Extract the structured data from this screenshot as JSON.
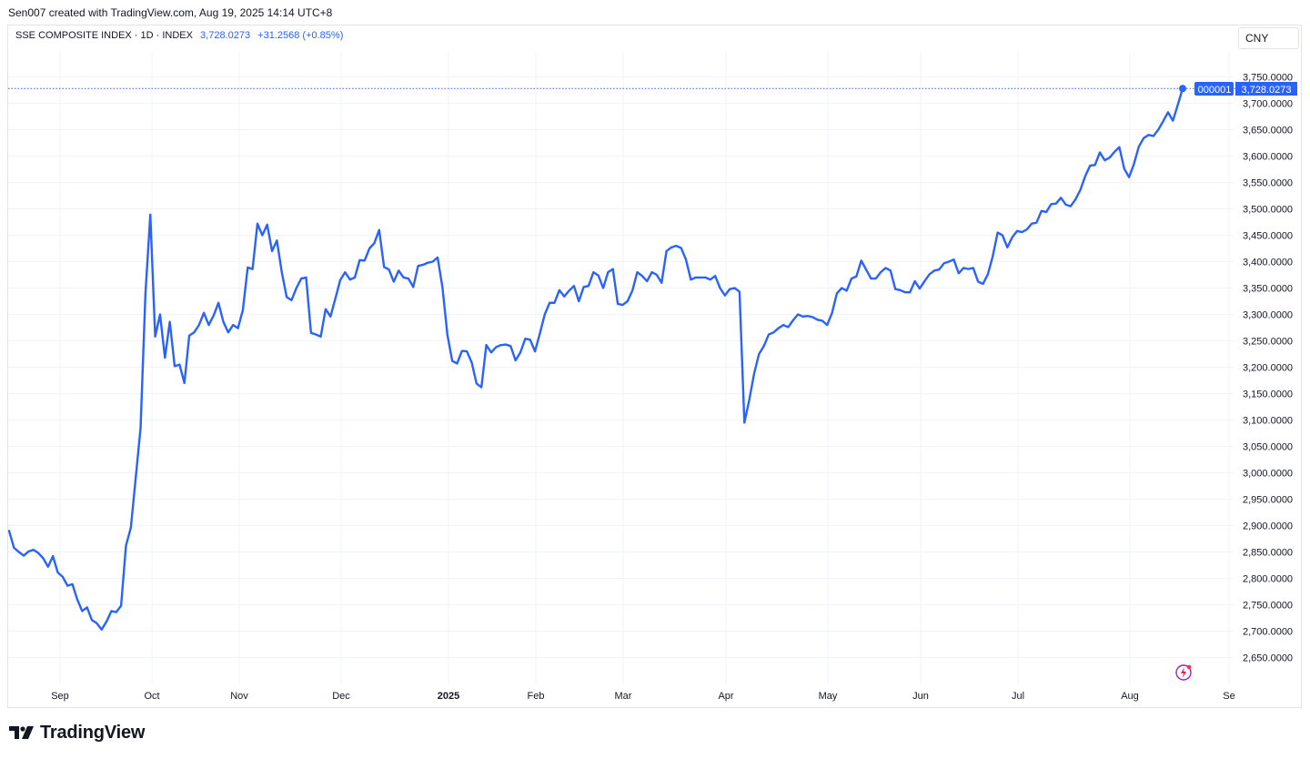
{
  "header": {
    "credit": "Sen007 created with TradingView.com, Aug 19, 2025 14:14 UTC+8"
  },
  "legend": {
    "symbol": "SSE COMPOSITE INDEX · 1D · INDEX",
    "value": "3,728.0273",
    "change": "+31.2568 (+0.85%)"
  },
  "currency_label": "CNY",
  "price_tag": {
    "ticker": "000001",
    "value": "3,728.0273"
  },
  "footer": {
    "brand": "TradingView"
  },
  "icons": {
    "logo": "tradingview-logo-icon",
    "bolt": "lightning-bolt-icon"
  },
  "colors": {
    "line": "#2962ff",
    "grid": "#f0f3fa",
    "text": "#131722",
    "tag_bg": "#2962ff"
  },
  "chart_data": {
    "type": "line",
    "title": "SSE COMPOSITE INDEX · 1D · INDEX",
    "xlabel": "",
    "ylabel": "",
    "ylim": [
      2610,
      3785
    ],
    "x_ticks": [
      "Sep",
      "Oct",
      "Nov",
      "Dec",
      "2025",
      "Feb",
      "Mar",
      "Apr",
      "May",
      "Jun",
      "Jul",
      "Aug",
      "Se"
    ],
    "y_ticks": [
      "3,750.0000",
      "3,700.0000",
      "3,650.0000",
      "3,600.0000",
      "3,550.0000",
      "3,500.0000",
      "3,450.0000",
      "3,400.0000",
      "3,350.0000",
      "3,300.0000",
      "3,250.0000",
      "3,200.0000",
      "3,150.0000",
      "3,100.0000",
      "3,050.0000",
      "3,000.0000",
      "2,950.0000",
      "2,900.0000",
      "2,850.0000",
      "2,800.0000",
      "2,750.0000",
      "2,700.0000",
      "2,650.0000"
    ],
    "y_tick_values": [
      3750,
      3700,
      3650,
      3600,
      3550,
      3500,
      3450,
      3400,
      3350,
      3300,
      3250,
      3200,
      3150,
      3100,
      3050,
      3000,
      2950,
      2900,
      2850,
      2800,
      2750,
      2700,
      2650
    ],
    "grid": true,
    "last_value": 3728.0273,
    "series": [
      {
        "values": [
          2890,
          2858,
          2850,
          2843,
          2851,
          2854,
          2848,
          2838,
          2822,
          2842,
          2811,
          2803,
          2786,
          2789,
          2760,
          2738,
          2745,
          2721,
          2715,
          2703,
          2718,
          2738,
          2736,
          2748,
          2862,
          2896,
          2990,
          3085,
          3340,
          3489,
          3258,
          3300,
          3218,
          3286,
          3202,
          3205,
          3170,
          3260,
          3266,
          3280,
          3303,
          3280,
          3298,
          3322,
          3286,
          3266,
          3280,
          3274,
          3308,
          3389,
          3386,
          3472,
          3450,
          3470,
          3420,
          3440,
          3380,
          3333,
          3327,
          3350,
          3368,
          3370,
          3265,
          3262,
          3258,
          3310,
          3296,
          3330,
          3365,
          3380,
          3366,
          3370,
          3403,
          3402,
          3425,
          3435,
          3460,
          3390,
          3385,
          3362,
          3383,
          3370,
          3368,
          3352,
          3392,
          3394,
          3398,
          3400,
          3408,
          3351,
          3262,
          3212,
          3207,
          3231,
          3230,
          3209,
          3169,
          3162,
          3242,
          3228,
          3238,
          3242,
          3243,
          3240,
          3213,
          3228,
          3254,
          3252,
          3230,
          3264,
          3300,
          3322,
          3322,
          3346,
          3334,
          3345,
          3354,
          3325,
          3352,
          3354,
          3380,
          3374,
          3350,
          3380,
          3386,
          3320,
          3318,
          3325,
          3345,
          3380,
          3373,
          3363,
          3380,
          3375,
          3360,
          3420,
          3427,
          3430,
          3426,
          3404,
          3366,
          3370,
          3370,
          3370,
          3366,
          3373,
          3350,
          3336,
          3348,
          3350,
          3343,
          3095,
          3138,
          3188,
          3225,
          3240,
          3262,
          3266,
          3274,
          3280,
          3276,
          3289,
          3300,
          3296,
          3297,
          3295,
          3290,
          3288,
          3280,
          3303,
          3340,
          3350,
          3345,
          3368,
          3372,
          3402,
          3385,
          3368,
          3368,
          3380,
          3388,
          3383,
          3348,
          3346,
          3342,
          3342,
          3363,
          3349,
          3363,
          3376,
          3383,
          3385,
          3397,
          3400,
          3404,
          3378,
          3388,
          3386,
          3388,
          3362,
          3358,
          3376,
          3410,
          3455,
          3450,
          3427,
          3446,
          3458,
          3456,
          3461,
          3472,
          3474,
          3496,
          3494,
          3509,
          3510,
          3521,
          3508,
          3505,
          3518,
          3536,
          3562,
          3582,
          3583,
          3607,
          3592,
          3597,
          3608,
          3617,
          3576,
          3560,
          3585,
          3618,
          3634,
          3640,
          3638,
          3650,
          3666,
          3683,
          3667,
          3697,
          3728.0273
        ]
      }
    ]
  }
}
